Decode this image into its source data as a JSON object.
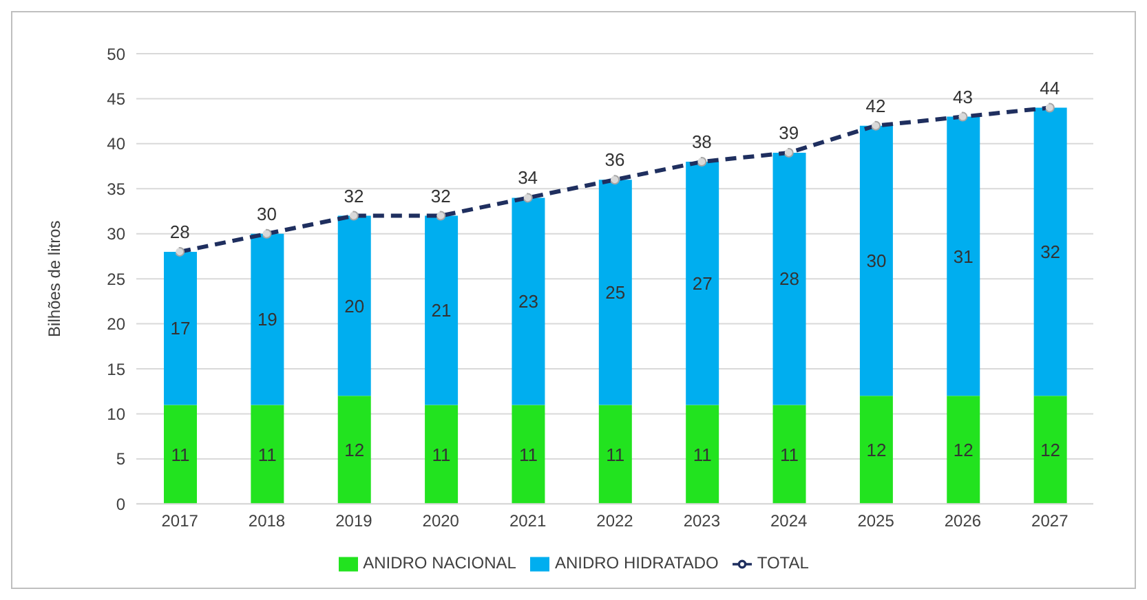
{
  "chart_data": {
    "type": "bar",
    "ylabel": "Bilhões de litros",
    "categories": [
      "2017",
      "2018",
      "2019",
      "2020",
      "2021",
      "2022",
      "2023",
      "2024",
      "2025",
      "2026",
      "2027"
    ],
    "series": [
      {
        "name": "ANIDRO NACIONAL",
        "color": "#22e31f",
        "values": [
          11,
          11,
          12,
          11,
          11,
          11,
          11,
          11,
          12,
          12,
          12
        ]
      },
      {
        "name": "ANIDRO HIDRATADO",
        "color": "#00aeef",
        "values": [
          17,
          19,
          20,
          21,
          23,
          25,
          27,
          28,
          30,
          31,
          32
        ]
      },
      {
        "name": "TOTAL",
        "type": "line",
        "color": "#1f2f5f",
        "line_style": "dashed",
        "marker": "circle",
        "values": [
          28,
          30,
          32,
          32,
          34,
          36,
          38,
          39,
          42,
          43,
          44
        ]
      }
    ],
    "stacked": true,
    "ylim": [
      0,
      50
    ],
    "yticks": [
      0,
      5,
      10,
      15,
      20,
      25,
      30,
      35,
      40,
      45,
      50
    ],
    "grid": "y",
    "legend": "bottom",
    "data_labels": true
  }
}
